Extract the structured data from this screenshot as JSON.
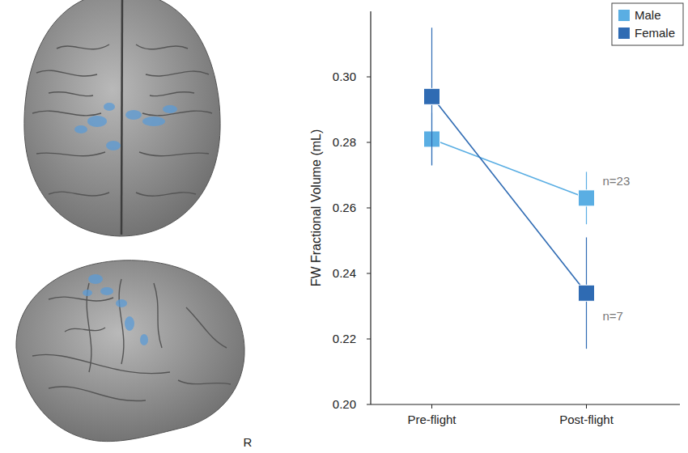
{
  "chart_data": {
    "type": "line",
    "y_label": "FW Fractional Volume (mL)",
    "categories": [
      "Pre-flight",
      "Post-flight"
    ],
    "series": [
      {
        "name": "Male",
        "color": "#5aaee3",
        "marker": "square",
        "values": [
          0.281,
          0.263
        ],
        "errors": [
          0.008,
          0.008
        ]
      },
      {
        "name": "Female",
        "color": "#2f6bb3",
        "marker": "square",
        "values": [
          0.294,
          0.234
        ],
        "errors": [
          0.021,
          0.017
        ]
      }
    ],
    "annotations": [
      "n=23",
      "n=7"
    ],
    "ylim": [
      0.2,
      0.32
    ],
    "yticks": [
      {
        "value": 0.2,
        "label": "0.20"
      },
      {
        "value": 0.22,
        "label": "0.22"
      },
      {
        "value": 0.24,
        "label": "0.24"
      },
      {
        "value": 0.26,
        "label": "0.26"
      },
      {
        "value": 0.28,
        "label": "0.28"
      },
      {
        "value": 0.3,
        "label": "0.30"
      }
    ],
    "legend": "top-right",
    "grid": false
  },
  "brain": {
    "label": "R"
  }
}
